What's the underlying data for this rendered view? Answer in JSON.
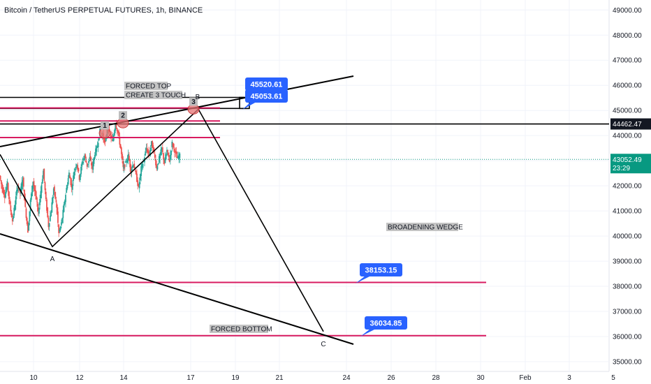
{
  "header": {
    "title": "Bitcoin / TetherUS PERPETUAL FUTURES, 1h, BINANCE"
  },
  "colors": {
    "bull": "#26a69a",
    "bear": "#ef5350",
    "pink": "#d81b60",
    "callout": "#2962ff",
    "trend": "#000000",
    "last_price": "#089981",
    "marker": "#e57373"
  },
  "chart_data": {
    "type": "candlestick",
    "title": "Bitcoin / TetherUS PERPETUAL FUTURES, 1h, BINANCE",
    "x_ticks": [
      "10",
      "12",
      "14",
      "17",
      "19",
      "21",
      "24",
      "26",
      "28",
      "30",
      "Feb",
      "3",
      "5"
    ],
    "y_ticks": [
      "49000.00",
      "48000.00",
      "47000.00",
      "46000.00",
      "45000.00",
      "44000.00",
      "43000.00",
      "42000.00",
      "41000.00",
      "40000.00",
      "39000.00",
      "38000.00",
      "37000.00",
      "36000.00",
      "35000.00"
    ],
    "ylim": [
      34900,
      49300
    ],
    "price_labels": [
      {
        "text": "44462.47",
        "value": 44462.47,
        "style": "dark"
      },
      {
        "text": "43052.49",
        "value": 43052.49,
        "style": "green",
        "sub": "23:29"
      }
    ],
    "horizontal_lines": [
      {
        "value": 45520,
        "color": "trend"
      },
      {
        "value": 45080,
        "color": "trend"
      },
      {
        "value": 45100,
        "color": "pink"
      },
      {
        "value": 44580,
        "color": "pink"
      },
      {
        "value": 44462.47,
        "color": "trend"
      },
      {
        "value": 43920,
        "color": "pink"
      },
      {
        "value": 38153.15,
        "color": "pink"
      },
      {
        "value": 36034.85,
        "color": "pink"
      }
    ],
    "callouts": [
      {
        "text": "45520.61",
        "value": 45520.61
      },
      {
        "text": "45053.61",
        "value": 45053.61
      },
      {
        "text": "38153.15",
        "value": 38153.15
      },
      {
        "text": "36034.85",
        "value": 36034.85
      }
    ],
    "annotations": [
      {
        "text": "FORCED TOP"
      },
      {
        "text": "CREATE 3 TOUCH"
      },
      {
        "text": "BROADENING WEDGE"
      },
      {
        "text": "FORCED BOTTOM"
      }
    ],
    "points": [
      "A",
      "B",
      "C"
    ],
    "touches": [
      "1",
      "2",
      "3"
    ],
    "pattern": [
      {
        "label": "start",
        "value": 43250
      },
      {
        "label": "A",
        "value": 39580
      },
      {
        "label": "B",
        "value": 45050
      },
      {
        "label": "C",
        "value": 36200
      }
    ],
    "candle_path": [
      42400,
      41900,
      41600,
      42100,
      41200,
      40600,
      41300,
      42000,
      41700,
      42300,
      41100,
      40200,
      41400,
      42200,
      41600,
      40900,
      41800,
      42600,
      41400,
      40400,
      41000,
      41900,
      41300,
      40100,
      40500,
      41200,
      41900,
      42500,
      41900,
      42600,
      42900,
      42300,
      42900,
      43200,
      42800,
      43100,
      42700,
      43300,
      43600,
      44200,
      44000,
      43700,
      44300,
      44000,
      43800,
      44500,
      44100,
      43500,
      42700,
      42900,
      43200,
      42600,
      42900,
      42400,
      41900,
      42700,
      43000,
      43500,
      43200,
      43700,
      43300,
      42700,
      43100,
      43500,
      42900,
      43400,
      43000,
      43700,
      43400,
      43100,
      43200
    ]
  }
}
